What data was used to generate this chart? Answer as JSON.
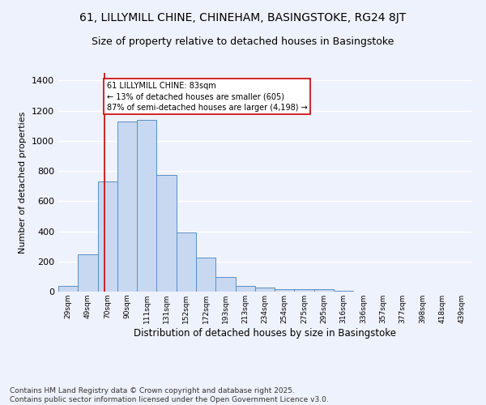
{
  "title": "61, LILLYMILL CHINE, CHINEHAM, BASINGSTOKE, RG24 8JT",
  "subtitle": "Size of property relative to detached houses in Basingstoke",
  "xlabel": "Distribution of detached houses by size in Basingstoke",
  "ylabel": "Number of detached properties",
  "categories": [
    "29sqm",
    "49sqm",
    "70sqm",
    "90sqm",
    "111sqm",
    "131sqm",
    "152sqm",
    "172sqm",
    "193sqm",
    "213sqm",
    "234sqm",
    "254sqm",
    "275sqm",
    "295sqm",
    "316sqm",
    "336sqm",
    "357sqm",
    "377sqm",
    "398sqm",
    "418sqm",
    "439sqm"
  ],
  "values": [
    35,
    245,
    730,
    1130,
    1140,
    775,
    390,
    225,
    95,
    35,
    25,
    18,
    15,
    15,
    5,
    0,
    0,
    0,
    0,
    0,
    0
  ],
  "bar_color": "#c8d8f0",
  "bar_edge_color": "#5b8ec4",
  "vline_x": 1.85,
  "vline_color": "#cc0000",
  "annotation_text": "61 LILLYMILL CHINE: 83sqm\n← 13% of detached houses are smaller (605)\n87% of semi-detached houses are larger (4,198) →",
  "annotation_box_color": "#ffffff",
  "annotation_box_edge": "#cc0000",
  "ylim": [
    0,
    1450
  ],
  "yticks": [
    0,
    200,
    400,
    600,
    800,
    1000,
    1200,
    1400
  ],
  "bg_color": "#eef2fc",
  "plot_bg_color": "#eef2fc",
  "footer": "Contains HM Land Registry data © Crown copyright and database right 2025.\nContains public sector information licensed under the Open Government Licence v3.0.",
  "title_fontsize": 10,
  "subtitle_fontsize": 9,
  "footer_fontsize": 6.5
}
